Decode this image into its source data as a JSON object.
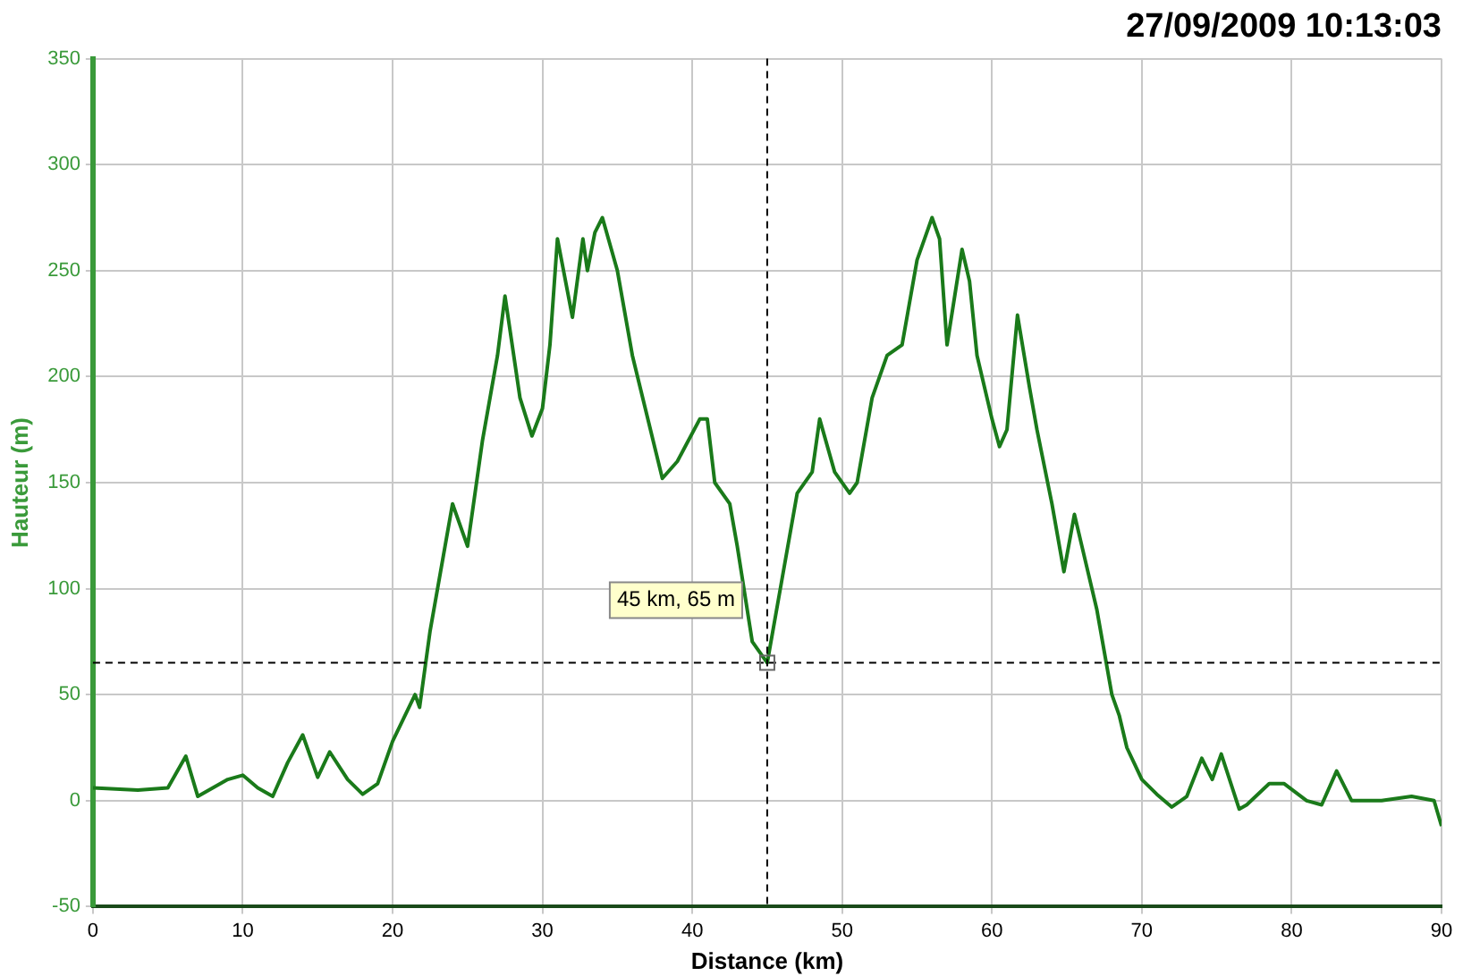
{
  "chart_data": {
    "type": "line",
    "title": "27/09/2009 10:13:03",
    "xlabel": "Distance (km)",
    "ylabel": "Hauteur (m)",
    "x": [
      0,
      3,
      5,
      6.2,
      7,
      9,
      10,
      11,
      12,
      13,
      14,
      15,
      15.8,
      17,
      18,
      19,
      20,
      21.5,
      21.8,
      22.5,
      23.5,
      24,
      25,
      26,
      27,
      27.5,
      28.5,
      29.3,
      30,
      30.5,
      31,
      32,
      32.7,
      33,
      33.5,
      34,
      35,
      36,
      38,
      39,
      40.5,
      41,
      41.5,
      42.5,
      43,
      44,
      45,
      46,
      47,
      48,
      48.5,
      49.5,
      50.5,
      51,
      52,
      53,
      54,
      55,
      56,
      56.5,
      57,
      58,
      58.5,
      59,
      60,
      60.5,
      61,
      61.7,
      62.5,
      63,
      64,
      64.8,
      65.5,
      66,
      67,
      68,
      68.5,
      69,
      70,
      71,
      72,
      73,
      74,
      74.7,
      75.3,
      76.5,
      77,
      78.5,
      79.5,
      81,
      82,
      83,
      84,
      86,
      88,
      89.5,
      90
    ],
    "series": [
      {
        "color": "#1a7a1a",
        "values": [
          6,
          5,
          6,
          21,
          2,
          10,
          12,
          6,
          2,
          18,
          31,
          11,
          23,
          10,
          3,
          8,
          28,
          50,
          44,
          80,
          120,
          140,
          120,
          170,
          210,
          238,
          190,
          172,
          185,
          215,
          265,
          228,
          265,
          250,
          268,
          275,
          250,
          210,
          152,
          160,
          180,
          180,
          150,
          140,
          120,
          75,
          65,
          105,
          145,
          155,
          180,
          155,
          145,
          150,
          190,
          210,
          215,
          255,
          275,
          265,
          215,
          260,
          245,
          210,
          180,
          167,
          175,
          229,
          195,
          175,
          140,
          108,
          135,
          120,
          90,
          50,
          40,
          25,
          10,
          3,
          -3,
          2,
          20,
          10,
          22,
          -4,
          -2,
          8,
          8,
          0,
          -2,
          14,
          0,
          0,
          2,
          0,
          -12
        ]
      }
    ],
    "xlim": [
      0,
      90
    ],
    "xticks": [
      0,
      10,
      20,
      30,
      40,
      50,
      60,
      70,
      80,
      90
    ],
    "ylim": [
      -50,
      350
    ],
    "yticks": [
      -50,
      0,
      50,
      100,
      150,
      200,
      250,
      300,
      350
    ],
    "grid": true,
    "legend": false,
    "marker": "none",
    "line_style": "solid",
    "ref_lines": [
      {
        "axis": "x",
        "value": 45,
        "line_style": "dashed",
        "color": "#000000"
      },
      {
        "axis": "y",
        "value": 65,
        "line_style": "dashed",
        "color": "#000000"
      }
    ],
    "annotations": [
      {
        "text": "45 km, 65 m",
        "x": 45,
        "y": 65
      }
    ]
  }
}
